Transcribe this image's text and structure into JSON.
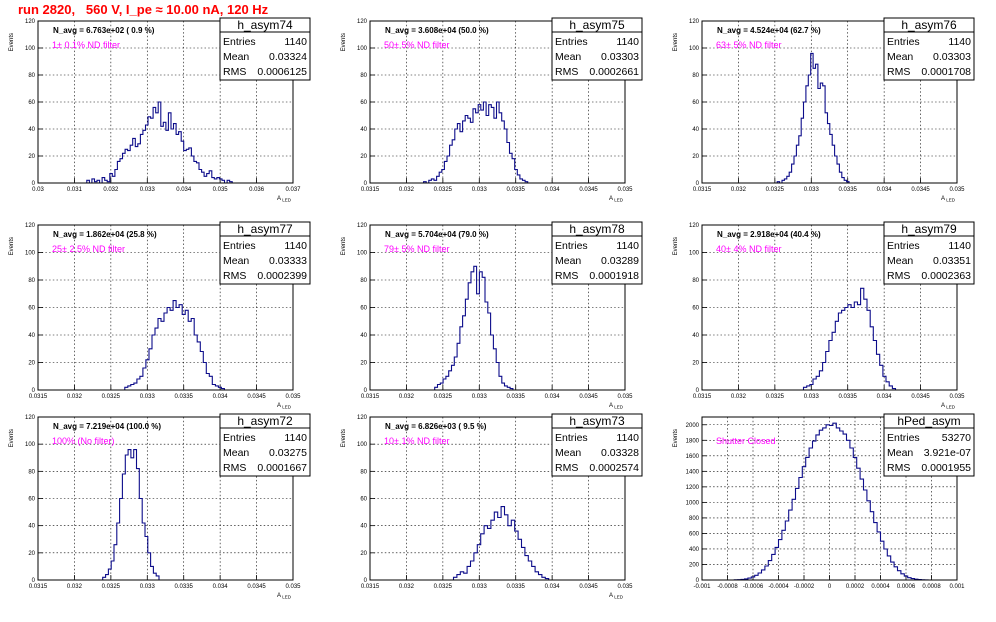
{
  "header": {
    "title": "run 2820,   560 V, I_pe ≈ 10.00 nA, 120 Hz"
  },
  "chart_data": [
    {
      "type": "histogram",
      "name": "h_asym74",
      "navg": "N_avg = 6.763e+02 ( 0.9 %)",
      "annotation": "1± 0.1% ND filter",
      "stats": {
        "Entries": "1140",
        "Mean": "0.03324",
        "RMS": "0.0006125"
      },
      "xlim": [
        0.03,
        0.037
      ],
      "ylim": [
        0,
        120
      ],
      "xticks": [
        "0.03",
        "0.031",
        "0.032",
        "0.033",
        "0.034",
        "0.035",
        "0.036",
        "0.037"
      ],
      "yticks": [
        "0",
        "20",
        "40",
        "60",
        "80",
        "100",
        "120"
      ],
      "xlabel": "A_LED",
      "ylabel": "Events",
      "bins": {
        "lo": 0.0312,
        "hi": 0.0354,
        "counts": [
          0,
          0,
          2,
          0,
          3,
          1,
          2,
          0,
          4,
          2,
          1,
          7,
          5,
          10,
          16,
          18,
          22,
          25,
          24,
          28,
          33,
          27,
          29,
          36,
          39,
          43,
          49,
          48,
          56,
          52,
          60,
          42,
          45,
          39,
          52,
          40,
          44,
          36,
          38,
          31,
          24,
          25,
          26,
          20,
          16,
          15,
          10,
          8,
          5,
          7,
          9,
          4,
          3,
          4,
          3,
          2,
          0,
          2,
          1,
          0
        ]
      }
    },
    {
      "type": "histogram",
      "name": "h_asym75",
      "navg": "N_avg = 3.608e+04 (50.0 %)",
      "annotation": "50± 5% ND filter",
      "stats": {
        "Entries": "1140",
        "Mean": "0.03303",
        "RMS": "0.0002661"
      },
      "xlim": [
        0.0315,
        0.035
      ],
      "ylim": [
        0,
        120
      ],
      "xticks": [
        "0.0315",
        "0.032",
        "0.0325",
        "0.033",
        "0.0335",
        "0.034",
        "0.0345",
        "0.035"
      ],
      "yticks": [
        "0",
        "20",
        "40",
        "60",
        "80",
        "100",
        "120"
      ],
      "xlabel": "A_LED",
      "ylabel": "Events",
      "bins": {
        "lo": 0.0322,
        "hi": 0.0337,
        "counts": [
          0,
          1,
          0,
          2,
          3,
          2,
          5,
          8,
          10,
          16,
          20,
          28,
          32,
          40,
          44,
          38,
          46,
          50,
          48,
          45,
          55,
          52,
          58,
          54,
          60,
          50,
          58,
          56,
          48,
          60,
          52,
          46,
          40,
          30,
          22,
          18,
          10,
          6,
          3,
          2,
          1,
          0
        ]
      }
    },
    {
      "type": "histogram",
      "name": "h_asym76",
      "navg": "N_avg = 4.524e+04 (62.7 %)",
      "annotation": "63± 5% ND filter",
      "stats": {
        "Entries": "1140",
        "Mean": "0.03303",
        "RMS": "0.0001708"
      },
      "xlim": [
        0.0315,
        0.035
      ],
      "ylim": [
        0,
        120
      ],
      "xticks": [
        "0.0315",
        "0.032",
        "0.0325",
        "0.033",
        "0.0335",
        "0.034",
        "0.0345",
        "0.035"
      ],
      "yticks": [
        "0",
        "20",
        "40",
        "60",
        "80",
        "100",
        "120"
      ],
      "xlabel": "A_LED",
      "ylabel": "Events",
      "bins": {
        "lo": 0.0325,
        "hi": 0.03355,
        "counts": [
          0,
          1,
          0,
          2,
          3,
          5,
          8,
          14,
          20,
          28,
          35,
          48,
          60,
          72,
          80,
          96,
          85,
          88,
          70,
          74,
          72,
          52,
          44,
          36,
          28,
          20,
          14,
          8,
          4,
          2,
          1,
          0
        ]
      }
    },
    {
      "type": "histogram",
      "name": "h_asym77",
      "navg": "N_avg = 1.862e+04 (25.8 %)",
      "annotation": "25± 2.5% ND filter",
      "stats": {
        "Entries": "1140",
        "Mean": "0.03333",
        "RMS": "0.0002399"
      },
      "xlim": [
        0.0315,
        0.035
      ],
      "ylim": [
        0,
        120
      ],
      "xticks": [
        "0.0315",
        "0.032",
        "0.0325",
        "0.033",
        "0.0335",
        "0.034",
        "0.0345",
        "0.035"
      ],
      "yticks": [
        "0",
        "20",
        "40",
        "60",
        "80",
        "100",
        "120"
      ],
      "xlabel": "A_LED",
      "ylabel": "Events",
      "bins": {
        "lo": 0.03265,
        "hi": 0.0341,
        "counts": [
          0,
          2,
          3,
          4,
          5,
          8,
          10,
          16,
          22,
          30,
          40,
          45,
          52,
          50,
          56,
          60,
          58,
          65,
          60,
          62,
          55,
          58,
          50,
          52,
          40,
          35,
          28,
          20,
          12,
          10,
          4,
          3,
          2,
          1,
          0
        ]
      }
    },
    {
      "type": "histogram",
      "name": "h_asym78",
      "navg": "N_avg = 5.704e+04 (79.0 %)",
      "annotation": "79± 5% ND filter",
      "stats": {
        "Entries": "1140",
        "Mean": "0.03289",
        "RMS": "0.0001918"
      },
      "xlim": [
        0.0315,
        0.035
      ],
      "ylim": [
        0,
        120
      ],
      "xticks": [
        "0.0315",
        "0.032",
        "0.0325",
        "0.033",
        "0.0335",
        "0.034",
        "0.0345",
        "0.035"
      ],
      "yticks": [
        "0",
        "20",
        "40",
        "60",
        "80",
        "100",
        "120"
      ],
      "xlabel": "A_LED",
      "ylabel": "Events",
      "bins": {
        "lo": 0.03235,
        "hi": 0.0335,
        "counts": [
          0,
          2,
          4,
          5,
          8,
          10,
          14,
          18,
          24,
          34,
          46,
          54,
          66,
          78,
          86,
          90,
          70,
          86,
          82,
          64,
          56,
          40,
          30,
          20,
          10,
          5,
          3,
          2,
          1,
          0
        ]
      }
    },
    {
      "type": "histogram",
      "name": "h_asym79",
      "navg": "N_avg = 2.918e+04 (40.4 %)",
      "annotation": "40± 4% ND filter",
      "stats": {
        "Entries": "1140",
        "Mean": "0.03351",
        "RMS": "0.0002363"
      },
      "xlim": [
        0.0315,
        0.035
      ],
      "ylim": [
        0,
        120
      ],
      "xticks": [
        "0.0315",
        "0.032",
        "0.0325",
        "0.033",
        "0.0335",
        "0.034",
        "0.0345",
        "0.035"
      ],
      "yticks": [
        "0",
        "20",
        "40",
        "60",
        "80",
        "100",
        "120"
      ],
      "xlabel": "A_LED",
      "ylabel": "Events",
      "bins": {
        "lo": 0.03285,
        "hi": 0.0342,
        "counts": [
          0,
          2,
          3,
          4,
          8,
          10,
          14,
          20,
          28,
          36,
          42,
          50,
          56,
          58,
          60,
          62,
          60,
          64,
          62,
          74,
          66,
          58,
          46,
          36,
          26,
          18,
          10,
          6,
          3,
          1,
          0
        ]
      }
    },
    {
      "type": "histogram",
      "name": "h_asym72",
      "navg": "N_avg = 7.219e+04 (100.0 %)",
      "annotation": "100% (No filter)",
      "stats": {
        "Entries": "1140",
        "Mean": "0.03275",
        "RMS": "0.0001667"
      },
      "xlim": [
        0.0315,
        0.035
      ],
      "ylim": [
        0,
        120
      ],
      "xticks": [
        "0.0315",
        "0.032",
        "0.0325",
        "0.033",
        "0.0335",
        "0.034",
        "0.0345",
        "0.035"
      ],
      "yticks": [
        "0",
        "20",
        "40",
        "60",
        "80",
        "100",
        "120"
      ],
      "xlabel": "A_LED",
      "ylabel": "Events",
      "bins": {
        "lo": 0.03235,
        "hi": 0.0332,
        "counts": [
          0,
          2,
          4,
          8,
          14,
          26,
          42,
          60,
          78,
          92,
          96,
          90,
          96,
          82,
          60,
          42,
          32,
          20,
          10,
          5,
          3,
          0
        ]
      }
    },
    {
      "type": "histogram",
      "name": "h_asym73",
      "navg": "N_avg = 6.826e+03 ( 9.5 %)",
      "annotation": "10± 1% ND filter",
      "stats": {
        "Entries": "1140",
        "Mean": "0.03328",
        "RMS": "0.0002574"
      },
      "xlim": [
        0.0315,
        0.035
      ],
      "ylim": [
        0,
        120
      ],
      "xticks": [
        "0.0315",
        "0.032",
        "0.0325",
        "0.033",
        "0.0335",
        "0.034",
        "0.0345",
        "0.035"
      ],
      "yticks": [
        "0",
        "20",
        "40",
        "60",
        "80",
        "100",
        "120"
      ],
      "xlabel": "A_LED",
      "ylabel": "Events",
      "bins": {
        "lo": 0.0326,
        "hi": 0.034,
        "counts": [
          0,
          2,
          4,
          6,
          5,
          10,
          14,
          20,
          26,
          34,
          40,
          38,
          44,
          50,
          46,
          54,
          48,
          40,
          44,
          36,
          30,
          24,
          18,
          14,
          10,
          6,
          4,
          2,
          1,
          0
        ]
      }
    },
    {
      "type": "histogram",
      "name": "hPed_asym",
      "navg": "",
      "annotation": "Shutter Closed",
      "stats": {
        "Entries": "53270",
        "Mean": "3.921e-07",
        "RMS": "0.0001955"
      },
      "xlim": [
        -0.001,
        0.001
      ],
      "ylim": [
        0,
        2100
      ],
      "xticks": [
        "-0.001",
        "-0.0008",
        "-0.0006",
        "-0.0004",
        "-0.0002",
        "0",
        "0.0002",
        "0.0004",
        "0.0006",
        "0.0008",
        "0.001"
      ],
      "yticks": [
        "0",
        "200",
        "400",
        "600",
        "800",
        "1000",
        "1200",
        "1400",
        "1600",
        "1800",
        "2000"
      ],
      "xlabel": "",
      "ylabel": "Events",
      "bins": {
        "lo": -0.0008,
        "hi": 0.0008,
        "counts": [
          0,
          0,
          2,
          4,
          8,
          14,
          24,
          40,
          60,
          90,
          130,
          180,
          250,
          330,
          420,
          520,
          640,
          760,
          900,
          1040,
          1180,
          1320,
          1460,
          1580,
          1700,
          1790,
          1870,
          1930,
          1960,
          2000,
          1990,
          2020,
          1960,
          1920,
          1880,
          1800,
          1700,
          1580,
          1440,
          1300,
          1160,
          1020,
          880,
          740,
          620,
          500,
          400,
          310,
          230,
          170,
          120,
          80,
          50,
          30,
          18,
          10,
          5,
          3,
          1,
          0
        ]
      }
    }
  ]
}
